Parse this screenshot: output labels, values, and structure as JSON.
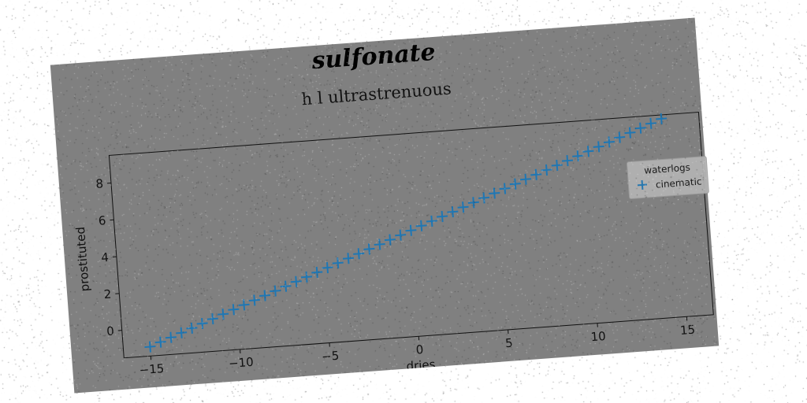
{
  "figure": {
    "suptitle": "sulfonate",
    "background": "#808080",
    "page_background": "#ffffff",
    "rotation_deg": -4.2,
    "speckle_noise": true
  },
  "chart_data": {
    "type": "scatter",
    "title": "h l ultrastrenuous",
    "xlabel": "dries",
    "ylabel": "prostituted",
    "xlim": [
      -16.5,
      16.5
    ],
    "ylim": [
      -1.5,
      9.5
    ],
    "xticks": [
      -15,
      -10,
      -5,
      0,
      5,
      10,
      15
    ],
    "xtick_labels": [
      "−15",
      "−10",
      "−5",
      "0",
      "5",
      "10",
      "15"
    ],
    "yticks": [
      0,
      2,
      4,
      6,
      8
    ],
    "ytick_labels": [
      "0",
      "2",
      "4",
      "6",
      "8"
    ],
    "grid": false,
    "legend": {
      "title": "waterlogs",
      "placement": "center-right"
    },
    "series": [
      {
        "name": "cinematic",
        "marker": "+",
        "color": "#1f77b4",
        "x": [
          -15.0,
          -14.4,
          -13.8,
          -13.2,
          -12.6,
          -12.0,
          -11.4,
          -10.8,
          -10.2,
          -9.6,
          -9.0,
          -8.4,
          -7.8,
          -7.2,
          -6.6,
          -6.0,
          -5.4,
          -4.8,
          -4.2,
          -3.6,
          -3.0,
          -2.4,
          -1.8,
          -1.2,
          -0.6,
          0.0,
          0.6,
          1.2,
          1.8,
          2.4,
          3.0,
          3.6,
          4.2,
          4.8,
          5.4,
          6.0,
          6.6,
          7.2,
          7.8,
          8.4,
          9.0,
          9.6,
          10.2,
          10.8,
          11.4,
          12.0,
          12.6,
          13.2,
          13.8,
          14.4
        ],
        "y": [
          -1.0,
          -0.79,
          -0.58,
          -0.37,
          -0.16,
          0.05,
          0.26,
          0.47,
          0.68,
          0.89,
          1.1,
          1.31,
          1.52,
          1.73,
          1.94,
          2.15,
          2.36,
          2.57,
          2.78,
          2.99,
          3.2,
          3.41,
          3.62,
          3.83,
          4.04,
          4.25,
          4.46,
          4.67,
          4.88,
          5.09,
          5.3,
          5.51,
          5.72,
          5.93,
          6.14,
          6.35,
          6.56,
          6.77,
          6.98,
          7.19,
          7.4,
          7.61,
          7.82,
          8.03,
          8.24,
          8.45,
          8.66,
          8.87,
          9.08,
          9.29
        ]
      }
    ]
  }
}
